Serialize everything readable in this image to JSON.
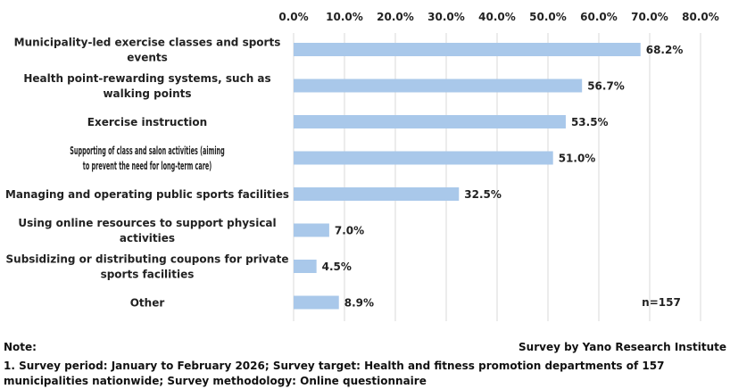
{
  "chart_data": {
    "type": "bar",
    "orientation": "horizontal",
    "categories": [
      [
        "Municipality-led exercise classes and sports",
        "events"
      ],
      [
        "Health point-rewarding systems, such as",
        "walking points"
      ],
      [
        "Exercise instruction"
      ],
      [
        "Supporting of class and salon activities (aiming",
        "to prevent the need for long-term care)"
      ],
      [
        "Managing and operating public sports facilities"
      ],
      [
        "Using online resources to support physical",
        "activities"
      ],
      [
        "Subsidizing or distributing coupons for private",
        "sports facilities"
      ],
      [
        "Other"
      ]
    ],
    "values": [
      68.2,
      56.7,
      53.5,
      51.0,
      32.5,
      7.0,
      4.5,
      8.9
    ],
    "data_labels": [
      "68.2%",
      "56.7%",
      "53.5%",
      "51.0%",
      "32.5%",
      "7.0%",
      "4.5%",
      "8.9%"
    ],
    "xlim": [
      0,
      80
    ],
    "ticks": [
      "0.0%",
      "10.0%",
      "20.0%",
      "30.0%",
      "40.0%",
      "50.0%",
      "60.0%",
      "70.0%",
      "80.0%"
    ],
    "tick_values": [
      0,
      10,
      20,
      30,
      40,
      50,
      60,
      70,
      80
    ],
    "axis_position": "top",
    "grid": true,
    "bar_color": "#a9c8ea",
    "grid_color": "#d9d9d9",
    "annotation": "n=157"
  },
  "notes": {
    "heading": "Note:",
    "source": "Survey by Yano Research Institute",
    "footnote": "1. Survey period: January to February 2026; Survey target: Health and fitness promotion departments of 157 municipalities nationwide; Survey methodology: Online questionnaire"
  }
}
